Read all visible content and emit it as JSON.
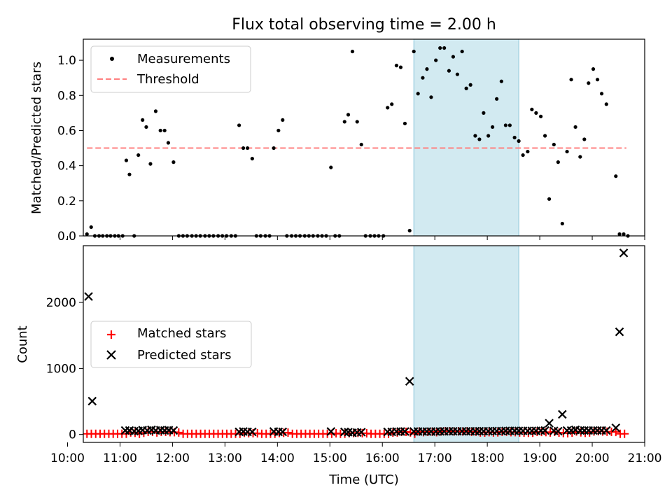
{
  "chart_data": {
    "title": "Flux total observing time = 2.00 h",
    "xlabel": "Time (UTC)",
    "xlim": [
      10.3,
      21.0
    ],
    "x_tick_values": [
      10,
      11,
      12,
      13,
      14,
      15,
      16,
      17,
      18,
      19,
      20,
      21
    ],
    "x_tick_labels": [
      "10:00",
      "11:00",
      "12:00",
      "13:00",
      "14:00",
      "15:00",
      "16:00",
      "17:00",
      "18:00",
      "19:00",
      "20:00",
      "21:00"
    ],
    "highlight_span": {
      "x": [
        16.6,
        18.6
      ],
      "color": "#add8e6"
    },
    "top": {
      "type": "scatter",
      "ylabel": "Matched/Predicted stars",
      "ylim": [
        0,
        1.12
      ],
      "y_tick_values": [
        0.0,
        0.2,
        0.4,
        0.6,
        0.8,
        1.0
      ],
      "y_tick_labels": [
        "0.0",
        "0.2",
        "0.4",
        "0.6",
        "0.8",
        "1.0"
      ],
      "legend": {
        "position": "upper-left",
        "entries": [
          "Measurements",
          "Threshold"
        ]
      },
      "threshold": {
        "name": "Threshold",
        "value": 0.5,
        "x_range": [
          10.37,
          20.65
        ],
        "color": "#ff8080"
      },
      "series": [
        {
          "name": "Measurements",
          "color": "#000000",
          "points": [
            [
              10.37,
              0.01
            ],
            [
              10.45,
              0.05
            ],
            [
              10.52,
              0.0
            ],
            [
              10.6,
              0.0
            ],
            [
              10.67,
              0.0
            ],
            [
              10.75,
              0.0
            ],
            [
              10.82,
              0.0
            ],
            [
              10.9,
              0.0
            ],
            [
              10.97,
              0.0
            ],
            [
              11.05,
              0.0
            ],
            [
              11.12,
              0.43
            ],
            [
              11.18,
              0.35
            ],
            [
              11.27,
              0.0
            ],
            [
              11.35,
              0.46
            ],
            [
              11.43,
              0.66
            ],
            [
              11.5,
              0.62
            ],
            [
              11.58,
              0.41
            ],
            [
              11.68,
              0.71
            ],
            [
              11.77,
              0.6
            ],
            [
              11.85,
              0.6
            ],
            [
              11.92,
              0.53
            ],
            [
              12.02,
              0.42
            ],
            [
              12.12,
              0.0
            ],
            [
              12.2,
              0.0
            ],
            [
              12.28,
              0.0
            ],
            [
              12.37,
              0.0
            ],
            [
              12.45,
              0.0
            ],
            [
              12.53,
              0.0
            ],
            [
              12.62,
              0.0
            ],
            [
              12.7,
              0.0
            ],
            [
              12.78,
              0.0
            ],
            [
              12.87,
              0.0
            ],
            [
              12.95,
              0.0
            ],
            [
              13.03,
              0.0
            ],
            [
              13.12,
              0.0
            ],
            [
              13.2,
              0.0
            ],
            [
              13.27,
              0.63
            ],
            [
              13.35,
              0.5
            ],
            [
              13.43,
              0.5
            ],
            [
              13.52,
              0.44
            ],
            [
              13.6,
              0.0
            ],
            [
              13.68,
              0.0
            ],
            [
              13.77,
              0.0
            ],
            [
              13.85,
              0.0
            ],
            [
              13.93,
              0.5
            ],
            [
              14.02,
              0.6
            ],
            [
              14.1,
              0.66
            ],
            [
              14.18,
              0.0
            ],
            [
              14.27,
              0.0
            ],
            [
              14.35,
              0.0
            ],
            [
              14.43,
              0.0
            ],
            [
              14.52,
              0.0
            ],
            [
              14.6,
              0.0
            ],
            [
              14.68,
              0.0
            ],
            [
              14.77,
              0.0
            ],
            [
              14.85,
              0.0
            ],
            [
              14.93,
              0.0
            ],
            [
              15.02,
              0.39
            ],
            [
              15.1,
              0.0
            ],
            [
              15.18,
              0.0
            ],
            [
              15.28,
              0.65
            ],
            [
              15.35,
              0.69
            ],
            [
              15.43,
              1.05
            ],
            [
              15.52,
              0.65
            ],
            [
              15.6,
              0.52
            ],
            [
              15.68,
              0.0
            ],
            [
              15.77,
              0.0
            ],
            [
              15.85,
              0.0
            ],
            [
              15.93,
              0.0
            ],
            [
              16.02,
              0.0
            ],
            [
              16.1,
              0.73
            ],
            [
              16.18,
              0.75
            ],
            [
              16.27,
              0.97
            ],
            [
              16.35,
              0.96
            ],
            [
              16.43,
              0.64
            ],
            [
              16.52,
              0.03
            ],
            [
              16.6,
              1.05
            ],
            [
              16.68,
              0.81
            ],
            [
              16.77,
              0.9
            ],
            [
              16.85,
              0.95
            ],
            [
              16.93,
              0.79
            ],
            [
              17.02,
              1.0
            ],
            [
              17.1,
              1.07
            ],
            [
              17.18,
              1.07
            ],
            [
              17.27,
              0.94
            ],
            [
              17.35,
              1.02
            ],
            [
              17.43,
              0.92
            ],
            [
              17.52,
              1.05
            ],
            [
              17.6,
              0.84
            ],
            [
              17.68,
              0.86
            ],
            [
              17.77,
              0.57
            ],
            [
              17.85,
              0.55
            ],
            [
              17.93,
              0.7
            ],
            [
              18.02,
              0.57
            ],
            [
              18.1,
              0.62
            ],
            [
              18.18,
              0.78
            ],
            [
              18.27,
              0.88
            ],
            [
              18.35,
              0.63
            ],
            [
              18.43,
              0.63
            ],
            [
              18.52,
              0.56
            ],
            [
              18.6,
              0.54
            ],
            [
              18.68,
              0.46
            ],
            [
              18.77,
              0.48
            ],
            [
              18.85,
              0.72
            ],
            [
              18.93,
              0.7
            ],
            [
              19.02,
              0.68
            ],
            [
              19.1,
              0.57
            ],
            [
              19.18,
              0.21
            ],
            [
              19.27,
              0.52
            ],
            [
              19.35,
              0.42
            ],
            [
              19.43,
              0.07
            ],
            [
              19.52,
              0.48
            ],
            [
              19.6,
              0.89
            ],
            [
              19.68,
              0.62
            ],
            [
              19.77,
              0.45
            ],
            [
              19.85,
              0.55
            ],
            [
              19.93,
              0.87
            ],
            [
              20.02,
              0.95
            ],
            [
              20.1,
              0.89
            ],
            [
              20.18,
              0.81
            ],
            [
              20.27,
              0.75
            ],
            [
              20.45,
              0.34
            ],
            [
              20.52,
              0.01
            ],
            [
              20.6,
              0.01
            ],
            [
              20.68,
              0.0
            ]
          ]
        }
      ]
    },
    "bottom": {
      "type": "scatter",
      "ylabel": "Count",
      "ylim": [
        -120,
        2860
      ],
      "y_tick_values": [
        0,
        1000,
        2000
      ],
      "y_tick_labels": [
        "0",
        "1000",
        "2000"
      ],
      "legend": {
        "position": "center-left",
        "entries": [
          "Matched stars",
          "Predicted stars"
        ]
      },
      "series": [
        {
          "name": "Matched stars",
          "marker": "plus",
          "color": "#ff0000",
          "x_start": 10.37,
          "x_end": 20.68,
          "x_step": 0.0833,
          "values": [
            10,
            10,
            10,
            10,
            10,
            10,
            10,
            10,
            10,
            10,
            30,
            25,
            10,
            25,
            40,
            40,
            30,
            40,
            40,
            35,
            35,
            30,
            10,
            10,
            10,
            10,
            10,
            10,
            10,
            10,
            10,
            10,
            10,
            10,
            10,
            10,
            25,
            20,
            20,
            18,
            10,
            10,
            10,
            10,
            22,
            25,
            28,
            10,
            10,
            10,
            10,
            10,
            10,
            10,
            10,
            10,
            10,
            18,
            10,
            10,
            20,
            22,
            25,
            20,
            18,
            10,
            10,
            10,
            10,
            10,
            28,
            30,
            40,
            40,
            30,
            10,
            45,
            35,
            40,
            42,
            35,
            45,
            50,
            50,
            45,
            48,
            45,
            50,
            40,
            42,
            30,
            28,
            35,
            30,
            32,
            40,
            42,
            35,
            35,
            30,
            28,
            25,
            26,
            40,
            38,
            36,
            30,
            40,
            28,
            22,
            20,
            28,
            45,
            32,
            25,
            30,
            45,
            50,
            45,
            42,
            40,
            38,
            10,
            10,
            10
          ]
        },
        {
          "name": "Predicted stars",
          "marker": "x",
          "color": "#000000",
          "points": [
            [
              10.4,
              2090
            ],
            [
              10.47,
              505
            ],
            [
              11.1,
              60
            ],
            [
              11.18,
              60
            ],
            [
              11.27,
              50
            ],
            [
              11.35,
              55
            ],
            [
              11.43,
              65
            ],
            [
              11.52,
              60
            ],
            [
              11.6,
              70
            ],
            [
              11.68,
              60
            ],
            [
              11.77,
              65
            ],
            [
              11.85,
              60
            ],
            [
              11.93,
              65
            ],
            [
              12.02,
              60
            ],
            [
              13.27,
              40
            ],
            [
              13.35,
              45
            ],
            [
              13.43,
              40
            ],
            [
              13.52,
              40
            ],
            [
              13.93,
              45
            ],
            [
              14.02,
              40
            ],
            [
              14.1,
              40
            ],
            [
              15.02,
              45
            ],
            [
              15.28,
              40
            ],
            [
              15.35,
              35
            ],
            [
              15.43,
              25
            ],
            [
              15.52,
              30
            ],
            [
              15.6,
              35
            ],
            [
              16.1,
              40
            ],
            [
              16.18,
              40
            ],
            [
              16.27,
              45
            ],
            [
              16.35,
              45
            ],
            [
              16.43,
              45
            ],
            [
              16.52,
              805
            ],
            [
              16.6,
              45
            ],
            [
              16.68,
              45
            ],
            [
              16.77,
              45
            ],
            [
              16.85,
              45
            ],
            [
              16.93,
              45
            ],
            [
              17.02,
              45
            ],
            [
              17.1,
              47
            ],
            [
              17.18,
              47
            ],
            [
              17.27,
              48
            ],
            [
              17.35,
              48
            ],
            [
              17.43,
              48
            ],
            [
              17.52,
              48
            ],
            [
              17.6,
              48
            ],
            [
              17.68,
              48
            ],
            [
              17.77,
              50
            ],
            [
              17.85,
              50
            ],
            [
              17.93,
              50
            ],
            [
              18.02,
              50
            ],
            [
              18.1,
              52
            ],
            [
              18.18,
              52
            ],
            [
              18.27,
              52
            ],
            [
              18.35,
              55
            ],
            [
              18.43,
              55
            ],
            [
              18.52,
              55
            ],
            [
              18.6,
              55
            ],
            [
              18.68,
              55
            ],
            [
              18.77,
              55
            ],
            [
              18.85,
              55
            ],
            [
              18.93,
              55
            ],
            [
              19.02,
              58
            ],
            [
              19.1,
              60
            ],
            [
              19.18,
              170
            ],
            [
              19.27,
              55
            ],
            [
              19.35,
              50
            ],
            [
              19.43,
              305
            ],
            [
              19.52,
              60
            ],
            [
              19.6,
              60
            ],
            [
              19.68,
              70
            ],
            [
              19.77,
              60
            ],
            [
              19.85,
              60
            ],
            [
              19.93,
              60
            ],
            [
              20.02,
              60
            ],
            [
              20.1,
              60
            ],
            [
              20.18,
              60
            ],
            [
              20.27,
              60
            ],
            [
              20.45,
              100
            ],
            [
              20.52,
              1555
            ],
            [
              20.6,
              2750
            ]
          ]
        }
      ]
    }
  }
}
